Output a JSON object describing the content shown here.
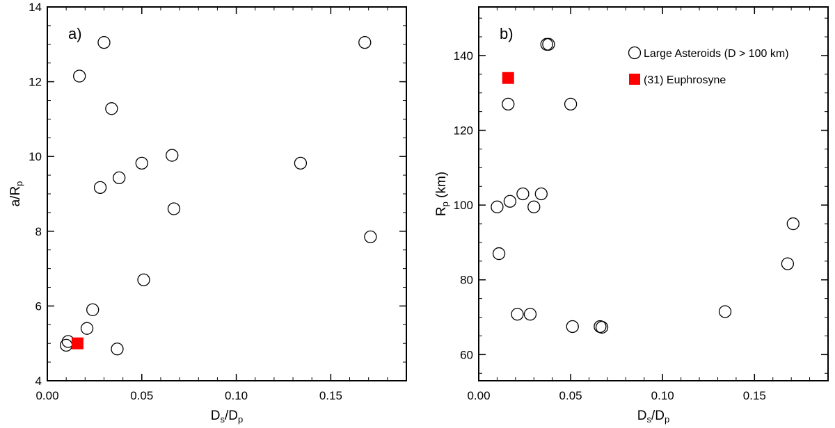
{
  "chart_data": [
    {
      "type": "scatter",
      "panel_label": "a)",
      "xlabel": "D_s/D_p",
      "ylabel": "a/R_p",
      "xlim": [
        0.0,
        0.19
      ],
      "ylim": [
        4,
        14
      ],
      "x_ticks": [
        "0.00",
        "0.05",
        "0.10",
        "0.15"
      ],
      "y_ticks": [
        "4",
        "6",
        "8",
        "10",
        "12",
        "14"
      ],
      "series": [
        {
          "name": "Large Asteroids (D > 100 km)",
          "marker": "open-circle",
          "points": [
            [
              0.03,
              13.05
            ],
            [
              0.168,
              13.05
            ],
            [
              0.017,
              12.15
            ],
            [
              0.034,
              11.28
            ],
            [
              0.066,
              10.03
            ],
            [
              0.05,
              9.82
            ],
            [
              0.134,
              9.82
            ],
            [
              0.038,
              9.43
            ],
            [
              0.028,
              9.17
            ],
            [
              0.067,
              8.6
            ],
            [
              0.171,
              7.85
            ],
            [
              0.051,
              6.7
            ],
            [
              0.024,
              5.9
            ],
            [
              0.021,
              5.4
            ],
            [
              0.011,
              5.05
            ],
            [
              0.01,
              4.95
            ],
            [
              0.037,
              4.85
            ]
          ]
        },
        {
          "name": "(31) Euphrosyne",
          "marker": "filled-square",
          "color": "#ff0000",
          "points": [
            [
              0.016,
              5.0
            ]
          ]
        }
      ]
    },
    {
      "type": "scatter",
      "panel_label": "b)",
      "xlabel": "D_s/D_p",
      "ylabel": "R_p (km)",
      "xlim": [
        0.0,
        0.19
      ],
      "ylim": [
        53,
        153
      ],
      "x_ticks": [
        "0.00",
        "0.05",
        "0.10",
        "0.15"
      ],
      "y_ticks": [
        "60",
        "80",
        "100",
        "120",
        "140"
      ],
      "legend": {
        "position": "top-right",
        "entries": [
          {
            "label": "Large Asteroids (D > 100 km)",
            "marker": "open-circle"
          },
          {
            "label": "(31) Euphrosyne",
            "marker": "filled-square",
            "color": "#ff0000"
          }
        ]
      },
      "series": [
        {
          "name": "Large Asteroids (D > 100 km)",
          "marker": "open-circle",
          "points": [
            [
              0.037,
              143
            ],
            [
              0.038,
              143
            ],
            [
              0.016,
              127
            ],
            [
              0.05,
              127
            ],
            [
              0.024,
              103
            ],
            [
              0.034,
              103
            ],
            [
              0.017,
              101
            ],
            [
              0.01,
              99.5
            ],
            [
              0.03,
              99.5
            ],
            [
              0.171,
              95
            ],
            [
              0.011,
              87
            ],
            [
              0.168,
              84.3
            ],
            [
              0.134,
              71.5
            ],
            [
              0.021,
              70.8
            ],
            [
              0.028,
              70.8
            ],
            [
              0.051,
              67.5
            ],
            [
              0.066,
              67.5
            ],
            [
              0.067,
              67.3
            ]
          ]
        },
        {
          "name": "(31) Euphrosyne",
          "marker": "filled-square",
          "color": "#ff0000",
          "points": [
            [
              0.016,
              134
            ]
          ]
        }
      ]
    }
  ]
}
